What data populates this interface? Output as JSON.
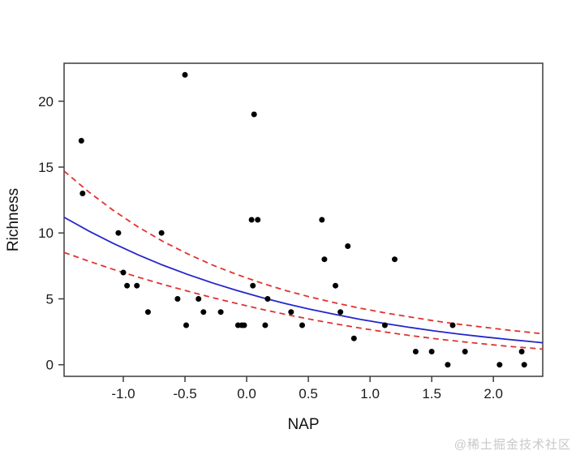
{
  "watermark": {
    "text": "@稀土掘金技术社区",
    "color": "#c8c8c8"
  },
  "chart_data": {
    "type": "scatter",
    "title": "",
    "xlabel": "NAP",
    "ylabel": "Richness",
    "xlim": [
      -1.48,
      2.4
    ],
    "ylim": [
      -0.88,
      22.88
    ],
    "x_ticks": [
      -1.0,
      -0.5,
      0.0,
      0.5,
      1.0,
      1.5,
      2.0
    ],
    "x_tick_labels": [
      "-1.0",
      "-0.5",
      "0.0",
      "0.5",
      "1.0",
      "1.5",
      "2.0"
    ],
    "y_ticks": [
      0,
      5,
      10,
      15,
      20
    ],
    "y_tick_labels": [
      "0",
      "5",
      "10",
      "15",
      "20"
    ],
    "grid": false,
    "legend": null,
    "colors": {
      "points": "#000000",
      "fit_line": "#2525cc",
      "ci_line": "#e03231",
      "axis": "#3c3c3c",
      "tick_text": "#1a1a1a"
    },
    "series": [
      {
        "name": "observations",
        "kind": "scatter",
        "color": "#000000",
        "points": [
          [
            -1.34,
            17
          ],
          [
            -1.33,
            13
          ],
          [
            -1.04,
            10
          ],
          [
            -1.0,
            7
          ],
          [
            -0.97,
            6
          ],
          [
            -0.89,
            6
          ],
          [
            -0.8,
            4
          ],
          [
            -0.69,
            10
          ],
          [
            -0.56,
            5
          ],
          [
            -0.5,
            22
          ],
          [
            -0.49,
            3
          ],
          [
            -0.39,
            5
          ],
          [
            -0.35,
            4
          ],
          [
            -0.21,
            4
          ],
          [
            -0.07,
            3
          ],
          [
            -0.04,
            3
          ],
          [
            -0.02,
            3
          ],
          [
            0.04,
            11
          ],
          [
            0.05,
            6
          ],
          [
            0.06,
            19
          ],
          [
            0.09,
            11
          ],
          [
            0.15,
            3
          ],
          [
            0.17,
            5
          ],
          [
            0.36,
            4
          ],
          [
            0.45,
            3
          ],
          [
            0.61,
            11
          ],
          [
            0.63,
            8
          ],
          [
            0.72,
            6
          ],
          [
            0.76,
            4
          ],
          [
            0.82,
            9
          ],
          [
            0.87,
            2
          ],
          [
            1.12,
            3
          ],
          [
            1.2,
            8
          ],
          [
            1.37,
            1
          ],
          [
            1.5,
            1
          ],
          [
            1.63,
            0
          ],
          [
            1.67,
            3
          ],
          [
            1.77,
            1
          ],
          [
            2.05,
            0
          ],
          [
            2.23,
            1
          ],
          [
            2.25,
            0
          ]
        ]
      },
      {
        "name": "fitted-curve",
        "kind": "line",
        "style": "solid",
        "color": "#2525cc",
        "x": [
          -1.48,
          -1.28,
          -1.08,
          -0.88,
          -0.68,
          -0.48,
          -0.28,
          -0.08,
          0.12,
          0.32,
          0.52,
          0.72,
          0.92,
          1.12,
          1.32,
          1.52,
          1.72,
          1.92,
          2.12,
          2.32,
          2.4
        ],
        "y": [
          11.19,
          10.15,
          9.2,
          8.34,
          7.56,
          6.86,
          6.22,
          5.64,
          5.11,
          4.63,
          4.2,
          3.81,
          3.45,
          3.13,
          2.84,
          2.57,
          2.33,
          2.12,
          1.92,
          1.74,
          1.67
        ]
      },
      {
        "name": "ci-upper",
        "kind": "line",
        "style": "dashed",
        "color": "#e03231",
        "x": [
          -1.48,
          -1.28,
          -1.08,
          -0.88,
          -0.68,
          -0.48,
          -0.28,
          -0.08,
          0.12,
          0.32,
          0.52,
          0.72,
          0.92,
          1.12,
          1.32,
          1.52,
          1.72,
          1.92,
          2.12,
          2.32,
          2.4
        ],
        "y": [
          14.7,
          13.12,
          11.71,
          10.46,
          9.37,
          8.42,
          7.58,
          6.85,
          6.2,
          5.62,
          5.13,
          4.69,
          4.29,
          3.94,
          3.63,
          3.33,
          3.07,
          2.85,
          2.63,
          2.43,
          2.35
        ]
      },
      {
        "name": "ci-lower",
        "kind": "line",
        "style": "dashed",
        "color": "#e03231",
        "x": [
          -1.48,
          -1.28,
          -1.08,
          -0.88,
          -0.68,
          -0.48,
          -0.28,
          -0.08,
          0.12,
          0.32,
          0.52,
          0.72,
          0.92,
          1.12,
          1.32,
          1.52,
          1.72,
          1.92,
          2.12,
          2.32,
          2.4
        ],
        "y": [
          8.52,
          7.86,
          7.23,
          6.65,
          6.1,
          5.59,
          5.1,
          4.65,
          4.21,
          3.81,
          3.44,
          3.1,
          2.78,
          2.49,
          2.22,
          1.98,
          1.77,
          1.58,
          1.4,
          1.25,
          1.19
        ]
      }
    ]
  }
}
